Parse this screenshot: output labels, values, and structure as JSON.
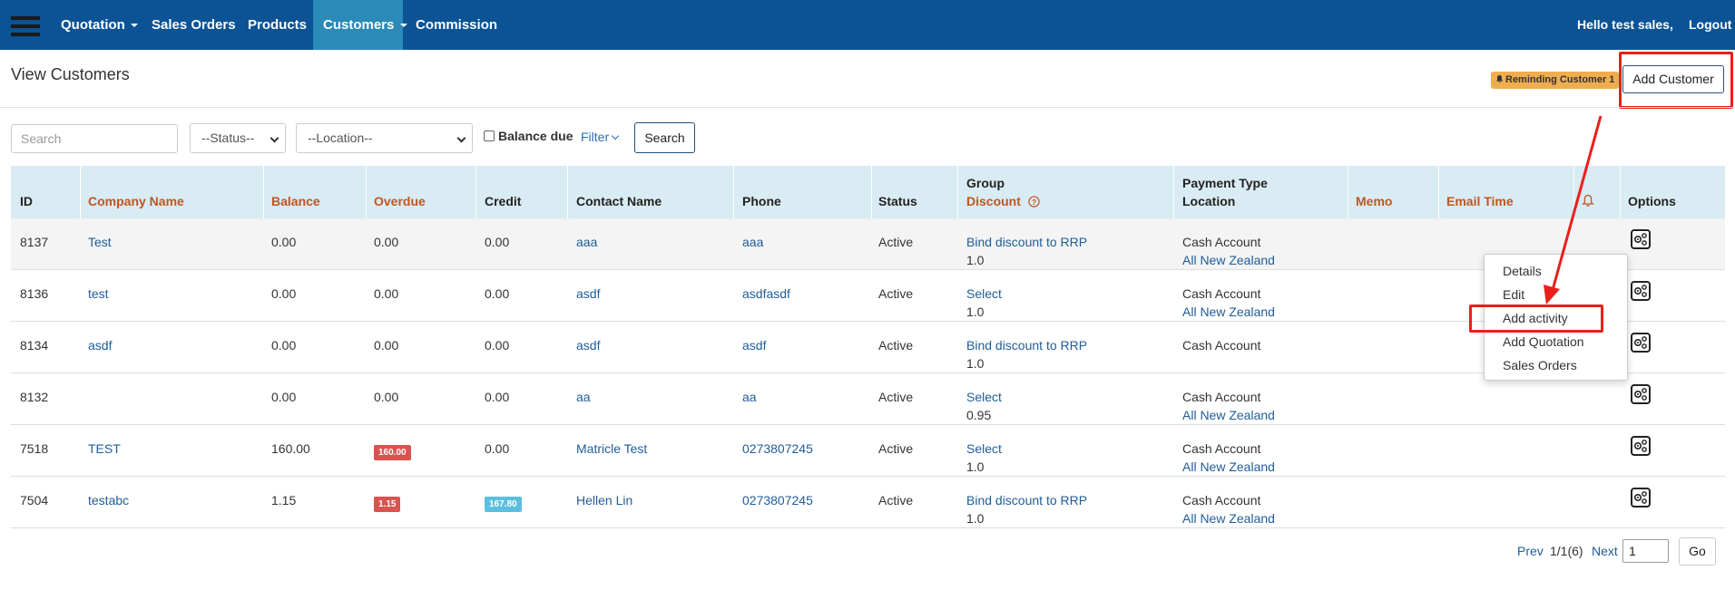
{
  "nav": {
    "items": [
      {
        "label": "Quotation",
        "caret": true
      },
      {
        "label": "Sales Orders",
        "caret": false
      },
      {
        "label": "Products",
        "caret": false
      },
      {
        "label": "Customers",
        "caret": true,
        "active": true
      },
      {
        "label": "Commission",
        "caret": false
      }
    ],
    "greeting": "Hello test sales,",
    "logout": "Logout"
  },
  "page": {
    "title": "View Customers",
    "reminding_badge": "Reminding Customer 1",
    "add_customer": "Add Customer"
  },
  "filters": {
    "search_placeholder": "Search",
    "status": "--Status--",
    "location": "--Location--",
    "balance_due": "Balance due",
    "filter": "Filter",
    "search_button": "Search"
  },
  "table": {
    "headers": {
      "id": "ID",
      "company": "Company Name",
      "balance": "Balance",
      "overdue": "Overdue",
      "credit": "Credit",
      "contact": "Contact Name",
      "phone": "Phone",
      "status": "Status",
      "group": "Group",
      "discount": "Discount",
      "payment_type": "Payment Type",
      "location": "Location",
      "memo": "Memo",
      "email_time": "Email Time",
      "options": "Options"
    },
    "rows": [
      {
        "id": "8137",
        "company": "Test",
        "balance": "0.00",
        "overdue": "0.00",
        "credit": "0.00",
        "contact": "aaa",
        "phone": "aaa",
        "status": "Active",
        "group": "Bind discount to RRP",
        "discount": "1.0",
        "payment": "Cash Account",
        "location": "All New Zealand"
      },
      {
        "id": "8136",
        "company": "test",
        "balance": "0.00",
        "overdue": "0.00",
        "credit": "0.00",
        "contact": "asdf",
        "phone": "asdfasdf",
        "status": "Active",
        "group": "Select",
        "discount": "1.0",
        "payment": "Cash Account",
        "location": "All New Zealand"
      },
      {
        "id": "8134",
        "company": "asdf",
        "balance": "0.00",
        "overdue": "0.00",
        "credit": "0.00",
        "contact": "asdf",
        "phone": "asdf",
        "status": "Active",
        "group": "Bind discount to RRP",
        "discount": "1.0",
        "payment": "Cash Account",
        "location": ""
      },
      {
        "id": "8132",
        "company": "",
        "balance": "0.00",
        "overdue": "0.00",
        "credit": "0.00",
        "contact": "aa",
        "phone": "aa",
        "status": "Active",
        "group": "Select",
        "discount": "0.95",
        "payment": "Cash Account",
        "location": "All New Zealand"
      },
      {
        "id": "7518",
        "company": "TEST",
        "balance": "160.00",
        "overdue": "160.00",
        "credit": "0.00",
        "contact": "Matricle Test",
        "phone": "0273807245",
        "status": "Active",
        "group": "Select",
        "discount": "1.0",
        "payment": "Cash Account",
        "location": "All New Zealand"
      },
      {
        "id": "7504",
        "company": "testabc",
        "balance": "1.15",
        "overdue": "1.15",
        "credit": "167.80",
        "contact": "Hellen Lin",
        "phone": "0273807245",
        "status": "Active",
        "group": "Bind discount to RRP",
        "discount": "1.0",
        "payment": "Cash Account",
        "location": "All New Zealand"
      }
    ]
  },
  "options_menu": {
    "items": [
      "Details",
      "Edit",
      "Add activity",
      "Add Quotation",
      "Sales Orders"
    ]
  },
  "pagination": {
    "prev": "Prev",
    "info": "1/1(6)",
    "next": "Next",
    "page_value": "1",
    "go": "Go"
  },
  "colors": {
    "navbar": "#0b5394",
    "active_nav": "#2b8ab8",
    "header_row": "#d9ebf3",
    "orange_header": "#c0561f",
    "link": "#1f5d99",
    "overdue_badge": "#d9534f",
    "credit_badge": "#5bc0de",
    "highlight": "#e8201b"
  }
}
